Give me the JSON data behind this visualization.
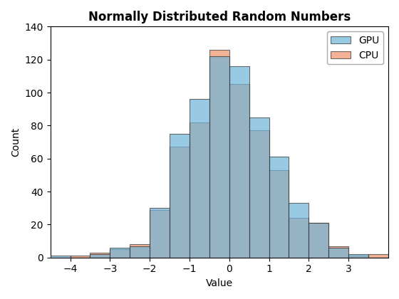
{
  "title": "Normally Distributed Random Numbers",
  "xlabel": "Value",
  "ylabel": "Count",
  "gpu_color": "#6EB4D9",
  "cpu_color": "#F0936A",
  "edge_color": "#333333",
  "alpha": 0.7,
  "xlim": [
    -4.5,
    4.0
  ],
  "ylim": [
    0,
    140
  ],
  "yticks": [
    0,
    20,
    40,
    60,
    80,
    100,
    120,
    140
  ],
  "xticks": [
    -4,
    -3,
    -2,
    -1,
    0,
    1,
    2,
    3
  ],
  "legend_labels": [
    "GPU",
    "CPU"
  ],
  "title_fontsize": 12,
  "label_fontsize": 10,
  "tick_fontsize": 10,
  "bin_edges": [
    -4.5,
    -4.0,
    -3.5,
    -3.0,
    -2.5,
    -2.0,
    -1.5,
    -1.0,
    -0.5,
    0.0,
    0.5,
    1.0,
    1.5,
    2.0,
    2.5,
    3.0,
    3.5,
    4.0
  ],
  "gpu_counts": [
    1,
    0,
    2,
    6,
    7,
    30,
    75,
    96,
    122,
    116,
    85,
    61,
    33,
    21,
    6,
    2,
    0
  ],
  "cpu_counts": [
    0,
    1,
    3,
    5,
    8,
    29,
    67,
    82,
    126,
    105,
    77,
    53,
    24,
    21,
    7,
    1,
    2
  ]
}
